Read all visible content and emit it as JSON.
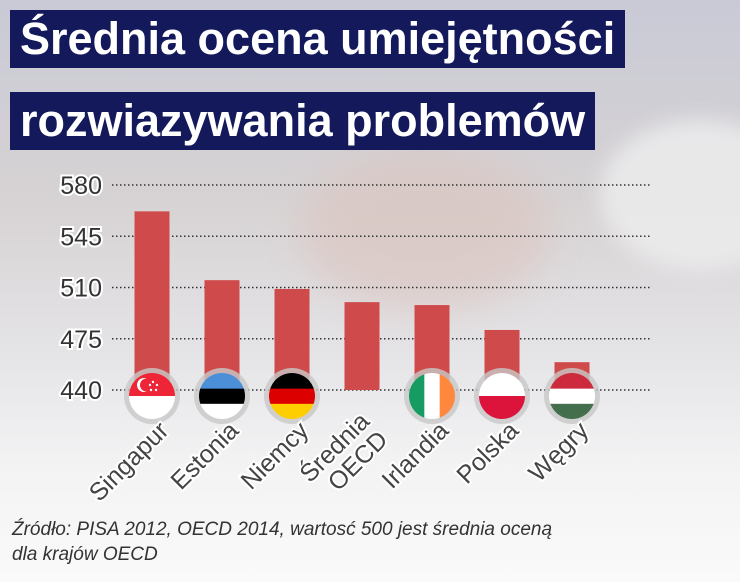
{
  "title_line1": "Średnia ocena umiejętności",
  "title_line2": "rozwiazywania problemów",
  "source_line1": "Źródło: PISA 2012, OECD 2014, wartosć 500 jest średnia oceną",
  "source_line2": "dla krajów OECD",
  "chart_data": {
    "type": "bar",
    "title": "Średnia ocena umiejętności rozwiazywania problemów",
    "categories": [
      "Singapur",
      "Estonia",
      "Niemcy",
      "Średnia OECD",
      "Irlandia",
      "Polska",
      "Węgry"
    ],
    "values": [
      562,
      515,
      509,
      500,
      498,
      481,
      459
    ],
    "ylim": [
      440,
      580
    ],
    "yticks": [
      580,
      545,
      510,
      475,
      440
    ],
    "grid": true,
    "bar_color": "#cf4b4b",
    "flags": [
      "singapore",
      "estonia",
      "germany",
      null,
      "ireland",
      "poland",
      "hungary"
    ]
  }
}
